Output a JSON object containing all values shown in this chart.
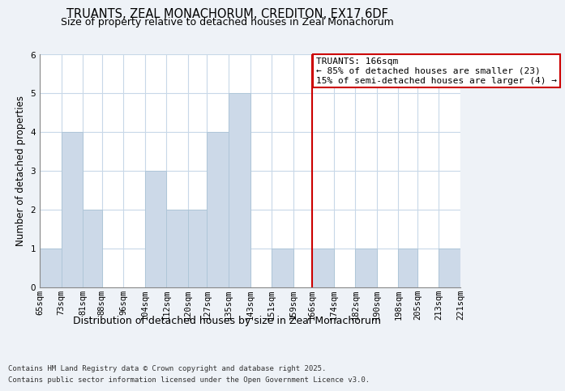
{
  "title": "TRUANTS, ZEAL MONACHORUM, CREDITON, EX17 6DF",
  "subtitle": "Size of property relative to detached houses in Zeal Monachorum",
  "xlabel": "Distribution of detached houses by size in Zeal Monachorum",
  "ylabel": "Number of detached properties",
  "bins": [
    65,
    73,
    81,
    88,
    96,
    104,
    112,
    120,
    127,
    135,
    143,
    151,
    159,
    166,
    174,
    182,
    190,
    198,
    205,
    213,
    221
  ],
  "bin_labels": [
    "65sqm",
    "73sqm",
    "81sqm",
    "88sqm",
    "96sqm",
    "104sqm",
    "112sqm",
    "120sqm",
    "127sqm",
    "135sqm",
    "143sqm",
    "151sqm",
    "159sqm",
    "166sqm",
    "174sqm",
    "182sqm",
    "190sqm",
    "198sqm",
    "205sqm",
    "213sqm",
    "221sqm"
  ],
  "counts": [
    1,
    4,
    2,
    0,
    0,
    3,
    2,
    2,
    4,
    5,
    0,
    1,
    0,
    1,
    0,
    1,
    0,
    1,
    0,
    1
  ],
  "bar_color": "#ccd9e8",
  "bar_edgecolor": "#afc6d8",
  "vline_x": 166,
  "vline_color": "#cc0000",
  "annotation_text": "TRUANTS: 166sqm\n← 85% of detached houses are smaller (23)\n15% of semi-detached houses are larger (4) →",
  "annotation_box_edgecolor": "#cc0000",
  "annotation_box_facecolor": "#ffffff",
  "ylim": [
    0,
    6
  ],
  "yticks": [
    0,
    1,
    2,
    3,
    4,
    5,
    6
  ],
  "background_color": "#eef2f7",
  "plot_background": "#ffffff",
  "footer1": "Contains HM Land Registry data © Crown copyright and database right 2025.",
  "footer2": "Contains public sector information licensed under the Open Government Licence v3.0.",
  "title_fontsize": 10.5,
  "subtitle_fontsize": 9,
  "xlabel_fontsize": 9,
  "ylabel_fontsize": 8.5,
  "tick_fontsize": 7.5,
  "annotation_fontsize": 8,
  "footer_fontsize": 6.5
}
